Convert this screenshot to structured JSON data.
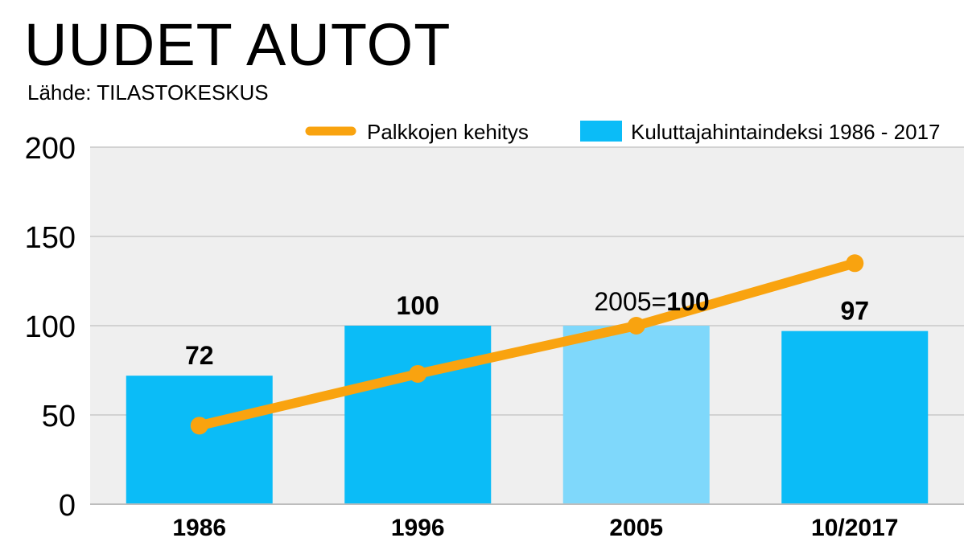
{
  "header": {
    "title": "UUDET AUTOT",
    "source": "Lähde: TILASTOKESKUS"
  },
  "colors": {
    "bar": "#0bbcf7",
    "bar_highlight": "#7fd8fb",
    "line": "#f9a30f",
    "plot_bg": "#efefef",
    "grid": "#ffffff"
  },
  "chart_data": {
    "type": "bar",
    "categories": [
      "1986",
      "1996",
      "2005",
      "10/2017"
    ],
    "series": [
      {
        "name": "Kuluttajahintaindeksi 1986 - 2017",
        "type": "bar",
        "values": [
          72,
          100,
          100,
          97
        ]
      },
      {
        "name": "Palkkojen kehitys",
        "type": "line",
        "values": [
          44,
          73,
          100,
          135
        ]
      }
    ],
    "bar_labels": [
      "72",
      "100",
      "",
      "97"
    ],
    "annotation": {
      "prefix": "2005=",
      "value": "100"
    },
    "ylim": [
      0,
      200
    ],
    "yticks": [
      "0",
      "50",
      "100",
      "150",
      "200"
    ],
    "grid": true,
    "legend_position": "top-right"
  }
}
